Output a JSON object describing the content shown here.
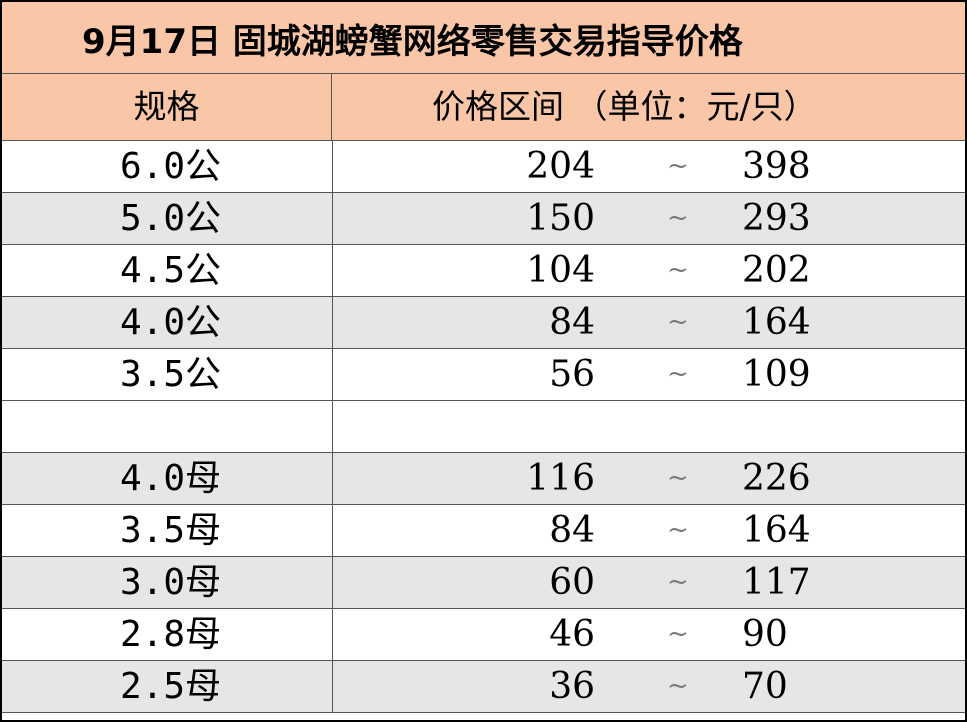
{
  "title": "9月17日 固城湖螃蟹网络零售交易指导价格",
  "header": {
    "spec": "规格",
    "range": "价格区间 （单位：元/只）"
  },
  "separator": "~",
  "rows": [
    {
      "spec": "6.0公",
      "low": "204",
      "high": "398"
    },
    {
      "spec": "5.0公",
      "low": "150",
      "high": "293"
    },
    {
      "spec": "4.5公",
      "low": "104",
      "high": "202"
    },
    {
      "spec": "4.0公",
      "low": "84",
      "high": "164"
    },
    {
      "spec": "3.5公",
      "low": "56",
      "high": "109"
    },
    {
      "spec": "",
      "low": "",
      "high": ""
    },
    {
      "spec": "4.0母",
      "low": "116",
      "high": "226"
    },
    {
      "spec": "3.5母",
      "low": "84",
      "high": "164"
    },
    {
      "spec": "3.0母",
      "low": "60",
      "high": "117"
    },
    {
      "spec": "2.8母",
      "low": "46",
      "high": "90"
    },
    {
      "spec": "2.5母",
      "low": "36",
      "high": "70"
    }
  ],
  "colors": {
    "header_bg": "#f9c7a7",
    "shade_bg": "#e6e6e6",
    "plain_bg": "#ffffff"
  }
}
